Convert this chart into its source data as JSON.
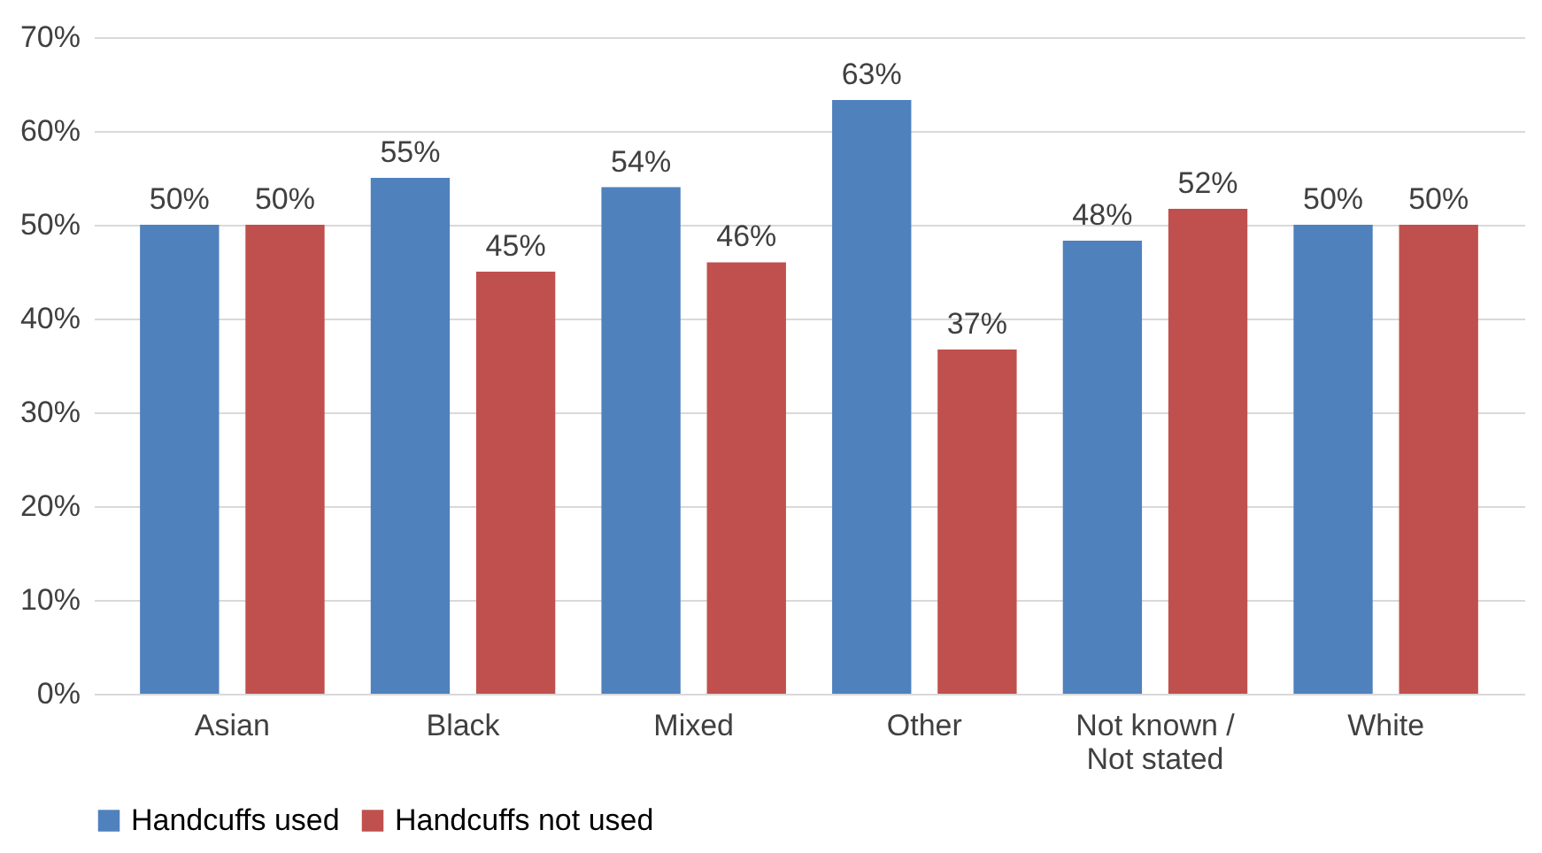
{
  "chart_data": {
    "type": "bar",
    "categories": [
      "Asian",
      "Black",
      "Mixed",
      "Other",
      "Not known / Not stated",
      "White"
    ],
    "series": [
      {
        "name": "Handcuffs used",
        "color": "#4f81bd",
        "values": [
          50,
          55,
          54,
          63.3,
          48.3,
          50
        ],
        "value_labels": [
          "50%",
          "55%",
          "54%",
          "63%",
          "48%",
          "50%"
        ]
      },
      {
        "name": "Handcuffs not used",
        "color": "#c0504d",
        "values": [
          50,
          45,
          46,
          36.7,
          51.7,
          50
        ],
        "value_labels": [
          "50%",
          "45%",
          "46%",
          "37%",
          "52%",
          "50%"
        ]
      }
    ],
    "ylim": [
      0,
      70
    ],
    "yticks": [
      {
        "value": 0,
        "label": "0%"
      },
      {
        "value": 10,
        "label": "10%"
      },
      {
        "value": 20,
        "label": "20%"
      },
      {
        "value": 30,
        "label": "30%"
      },
      {
        "value": 40,
        "label": "40%"
      },
      {
        "value": 50,
        "label": "50%"
      },
      {
        "value": 60,
        "label": "60%"
      },
      {
        "value": 70,
        "label": "70%"
      }
    ],
    "grid": "y",
    "legend": "bottom"
  }
}
